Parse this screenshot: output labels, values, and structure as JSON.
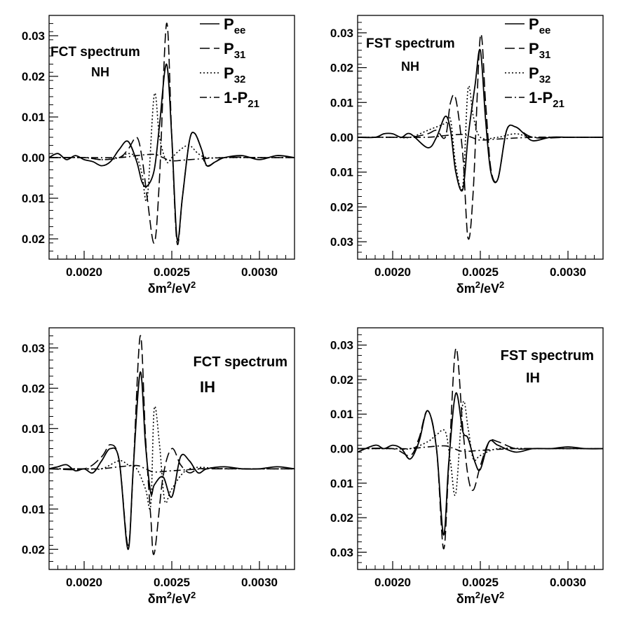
{
  "xlabel": "δm²/eV²",
  "xlabel_parts": {
    "base": "δm",
    "exp": "2",
    "mid": "/eV",
    "exp2": "2"
  },
  "legend": [
    {
      "key": "Pee",
      "main": "P",
      "sub": "ee",
      "dash": ""
    },
    {
      "key": "P31",
      "main": "P",
      "sub": "31",
      "dash": "14 6"
    },
    {
      "key": "P32",
      "main": "P",
      "sub": "32",
      "dash": "2 3"
    },
    {
      "key": "1mP21",
      "main": "1-P",
      "sub": "21",
      "dash": "10 4 2 4"
    }
  ],
  "chart_data": [
    {
      "type": "line",
      "title": "FCT spectrum",
      "subtitle": "NH",
      "xlim": [
        0.0018,
        0.0032
      ],
      "ylim": [
        -0.025,
        0.035
      ],
      "xticks": [
        0.002,
        0.0025,
        0.003
      ],
      "xtick_labels": [
        "0.0020",
        "0.0025",
        "0.0030"
      ],
      "yticks": [
        -0.02,
        -0.01,
        0.0,
        0.01,
        0.02,
        0.03
      ],
      "ytick_labels": [
        "0.02",
        "0.01",
        "0.00",
        "0.01",
        "0.02",
        "0.03"
      ],
      "has_legend": true,
      "series": [
        {
          "name": "Pee",
          "x": [
            0.0018,
            0.00185,
            0.0019,
            0.00195,
            0.002,
            0.00205,
            0.0021,
            0.00215,
            0.0022,
            0.00225,
            0.0023,
            0.00233,
            0.00236,
            0.0024,
            0.00243,
            0.00247,
            0.0025,
            0.00253,
            0.00256,
            0.0026,
            0.00263,
            0.00267,
            0.0027,
            0.00275,
            0.0028,
            0.0029,
            0.003,
            0.0031,
            0.0032
          ],
          "y": [
            0.0,
            0.001,
            -0.0005,
            0.0005,
            -0.0005,
            -0.001,
            -0.002,
            -0.001,
            0.002,
            0.004,
            -0.001,
            -0.006,
            -0.007,
            -0.003,
            0.008,
            0.023,
            0.005,
            -0.02,
            -0.01,
            0.004,
            0.006,
            0.002,
            -0.002,
            -0.001,
            0.0,
            0.0005,
            -0.0005,
            0.0005,
            0.0
          ]
        },
        {
          "name": "P31",
          "x": [
            0.0018,
            0.002,
            0.0021,
            0.0022,
            0.00225,
            0.0023,
            0.00233,
            0.00236,
            0.0024,
            0.00243,
            0.00247,
            0.0025,
            0.00253,
            0.00256,
            0.0026,
            0.00263,
            0.00267,
            0.0027,
            0.0028,
            0.003,
            0.0032
          ],
          "y": [
            0.0,
            0.0,
            -0.0005,
            0.0,
            0.002,
            0.005,
            0.0,
            -0.01,
            -0.021,
            -0.005,
            0.033,
            0.005,
            -0.021,
            -0.01,
            0.004,
            0.006,
            0.002,
            -0.002,
            0.0,
            0.0,
            0.0
          ]
        },
        {
          "name": "P32",
          "x": [
            0.0018,
            0.002,
            0.0021,
            0.0022,
            0.00225,
            0.0023,
            0.00233,
            0.00236,
            0.0024,
            0.00243,
            0.00247,
            0.0025,
            0.00255,
            0.0026,
            0.00265,
            0.0027,
            0.0028,
            0.003,
            0.0032
          ],
          "y": [
            0.0,
            0.0,
            -0.0005,
            0.0,
            0.001,
            0.0,
            -0.004,
            -0.01,
            0.0155,
            0.005,
            -0.001,
            0.0,
            0.002,
            0.003,
            0.001,
            0.0,
            0.0,
            0.0,
            0.0
          ]
        },
        {
          "name": "1-P21",
          "x": [
            0.0018,
            0.002,
            0.0022,
            0.0023,
            0.0024,
            0.00245,
            0.0025,
            0.0026,
            0.0028,
            0.003,
            0.0032
          ],
          "y": [
            0.0,
            0.0,
            0.0,
            0.0005,
            0.0008,
            0.0,
            -0.0008,
            -0.0005,
            0.0,
            0.0,
            0.0
          ]
        }
      ]
    },
    {
      "type": "line",
      "title": "FST spectrum",
      "subtitle": "NH",
      "xlim": [
        0.0018,
        0.0032
      ],
      "ylim": [
        -0.035,
        0.035
      ],
      "xticks": [
        0.002,
        0.0025,
        0.003
      ],
      "xtick_labels": [
        "0.0020",
        "0.0025",
        "0.0030"
      ],
      "yticks": [
        -0.03,
        -0.02,
        -0.01,
        0.0,
        0.01,
        0.02,
        0.03
      ],
      "ytick_labels": [
        "0.03",
        "0.02",
        "0.01",
        "0.00",
        "0.01",
        "0.02",
        "0.03"
      ],
      "has_legend": true,
      "series": [
        {
          "name": "Pee",
          "x": [
            0.0018,
            0.0019,
            0.00195,
            0.002,
            0.00205,
            0.0021,
            0.0022,
            0.00225,
            0.0023,
            0.00233,
            0.00236,
            0.0024,
            0.00243,
            0.00247,
            0.0025,
            0.00253,
            0.00256,
            0.0026,
            0.00265,
            0.0027,
            0.00275,
            0.0028,
            0.0029,
            0.003,
            0.0031,
            0.0032
          ],
          "y": [
            0.0,
            0.0,
            0.001,
            0.001,
            0.0,
            0.001,
            -0.003,
            0.0,
            0.006,
            0.002,
            -0.01,
            -0.015,
            0.0,
            0.015,
            0.025,
            0.005,
            -0.01,
            -0.012,
            0.002,
            0.003,
            0.001,
            -0.001,
            0.0,
            0.0,
            0.0,
            0.0
          ]
        },
        {
          "name": "P31",
          "x": [
            0.0018,
            0.002,
            0.0021,
            0.0022,
            0.00225,
            0.0023,
            0.00233,
            0.00236,
            0.0024,
            0.00243,
            0.00246,
            0.0025,
            0.00253,
            0.00256,
            0.0026,
            0.00265,
            0.0027,
            0.0028,
            0.003,
            0.0032
          ],
          "y": [
            0.0,
            0.0,
            0.0,
            0.001,
            0.002,
            0.0,
            0.01,
            0.011,
            -0.005,
            -0.029,
            -0.015,
            0.029,
            0.01,
            -0.009,
            -0.012,
            0.002,
            0.003,
            0.0,
            0.0,
            0.0
          ]
        },
        {
          "name": "P32",
          "x": [
            0.0018,
            0.002,
            0.0021,
            0.0022,
            0.0023,
            0.00233,
            0.00236,
            0.0024,
            0.00243,
            0.00246,
            0.0025,
            0.0026,
            0.0027,
            0.0028,
            0.003,
            0.0032
          ],
          "y": [
            0.0,
            0.0,
            0.0,
            0.002,
            0.004,
            0.005,
            -0.008,
            -0.014,
            0.014,
            0.006,
            0.0,
            0.0,
            0.001,
            0.0,
            0.0,
            0.0
          ]
        },
        {
          "name": "1-P21",
          "x": [
            0.0018,
            0.002,
            0.0022,
            0.0023,
            0.0024,
            0.00245,
            0.0025,
            0.0026,
            0.0028,
            0.003,
            0.0032
          ],
          "y": [
            0.0,
            0.0,
            0.0,
            0.0005,
            0.0008,
            0.0,
            -0.0008,
            -0.0005,
            0.0,
            0.0,
            0.0
          ]
        }
      ]
    },
    {
      "type": "line",
      "title": "FCT spectrum",
      "subtitle": "IH",
      "xlim": [
        0.0018,
        0.0032
      ],
      "ylim": [
        -0.025,
        0.035
      ],
      "xticks": [
        0.002,
        0.0025,
        0.003
      ],
      "xtick_labels": [
        "0.0020",
        "0.0025",
        "0.0030"
      ],
      "yticks": [
        -0.02,
        -0.01,
        0.0,
        0.01,
        0.02,
        0.03
      ],
      "ytick_labels": [
        "0.02",
        "0.01",
        "0.00",
        "0.01",
        "0.02",
        "0.03"
      ],
      "has_legend": false,
      "series": [
        {
          "name": "Pee",
          "x": [
            0.0018,
            0.00185,
            0.0019,
            0.00195,
            0.002,
            0.00205,
            0.0021,
            0.00215,
            0.0022,
            0.00225,
            0.00228,
            0.00232,
            0.00235,
            0.00238,
            0.0024,
            0.00245,
            0.0025,
            0.00255,
            0.0026,
            0.00265,
            0.0027,
            0.0028,
            0.0029,
            0.003,
            0.0031,
            0.0032
          ],
          "y": [
            0.0,
            0.0005,
            0.001,
            -0.0005,
            0.0,
            -0.001,
            0.002,
            0.005,
            0.002,
            -0.02,
            0.0,
            0.024,
            0.006,
            -0.006,
            -0.004,
            -0.002,
            -0.007,
            0.003,
            0.002,
            -0.001,
            0.0,
            0.0005,
            0.0,
            0.0,
            0.0005,
            0.0
          ]
        },
        {
          "name": "P31",
          "x": [
            0.0018,
            0.002,
            0.0021,
            0.00215,
            0.0022,
            0.00225,
            0.00228,
            0.00232,
            0.00235,
            0.00238,
            0.0024,
            0.00245,
            0.0025,
            0.00255,
            0.0026,
            0.00265,
            0.0027,
            0.0028,
            0.003,
            0.0032
          ],
          "y": [
            0.0,
            0.0,
            0.003,
            0.006,
            0.002,
            -0.019,
            0.0,
            0.033,
            0.008,
            -0.012,
            -0.021,
            -0.002,
            0.005,
            0.001,
            -0.001,
            0.0,
            0.0,
            0.0,
            0.0,
            0.0
          ]
        },
        {
          "name": "P32",
          "x": [
            0.0018,
            0.002,
            0.0021,
            0.0022,
            0.00225,
            0.0023,
            0.00235,
            0.00238,
            0.0024,
            0.00243,
            0.00246,
            0.0025,
            0.0026,
            0.0028,
            0.003,
            0.0032
          ],
          "y": [
            0.0,
            0.0,
            0.0,
            0.002,
            0.001,
            0.0,
            -0.005,
            -0.009,
            0.015,
            0.006,
            -0.008,
            -0.005,
            0.0,
            0.0,
            0.0,
            0.0
          ]
        },
        {
          "name": "1-P21",
          "x": [
            0.0018,
            0.002,
            0.0021,
            0.0022,
            0.0023,
            0.00235,
            0.0024,
            0.0025,
            0.0027,
            0.003,
            0.0032
          ],
          "y": [
            0.0,
            0.0,
            0.0,
            0.0005,
            0.0008,
            0.0,
            -0.0008,
            -0.0005,
            0.0,
            0.0,
            0.0
          ]
        }
      ]
    },
    {
      "type": "line",
      "title": "FST spectrum",
      "subtitle": "IH",
      "xlim": [
        0.0018,
        0.0032
      ],
      "ylim": [
        -0.035,
        0.035
      ],
      "xticks": [
        0.002,
        0.0025,
        0.003
      ],
      "xtick_labels": [
        "0.0020",
        "0.0025",
        "0.0030"
      ],
      "yticks": [
        -0.03,
        -0.02,
        -0.01,
        0.0,
        0.01,
        0.02,
        0.03
      ],
      "ytick_labels": [
        "0.03",
        "0.02",
        "0.01",
        "0.00",
        "0.01",
        "0.02",
        "0.03"
      ],
      "has_legend": false,
      "series": [
        {
          "name": "Pee",
          "x": [
            0.0018,
            0.0019,
            0.00195,
            0.002,
            0.00205,
            0.0021,
            0.00215,
            0.0022,
            0.00225,
            0.00229,
            0.00232,
            0.00236,
            0.0024,
            0.00243,
            0.00247,
            0.0025,
            0.00255,
            0.0026,
            0.0027,
            0.0028,
            0.0029,
            0.003,
            0.0031,
            0.0032
          ],
          "y": [
            -0.001,
            0.001,
            0.0,
            0.001,
            0.0,
            -0.003,
            0.002,
            0.011,
            0.0,
            -0.025,
            -0.004,
            0.016,
            0.005,
            0.003,
            -0.004,
            -0.006,
            0.002,
            0.001,
            -0.001,
            0.0,
            0.0,
            0.0005,
            0.0,
            0.0
          ]
        },
        {
          "name": "P31",
          "x": [
            0.0018,
            0.002,
            0.0021,
            0.00215,
            0.0022,
            0.00225,
            0.00229,
            0.00232,
            0.00236,
            0.0024,
            0.00243,
            0.00246,
            0.0025,
            0.00255,
            0.0026,
            0.0027,
            0.0028,
            0.003,
            0.0032
          ],
          "y": [
            0.0,
            0.0,
            -0.002,
            0.003,
            0.011,
            0.0,
            -0.029,
            -0.005,
            0.029,
            0.006,
            -0.008,
            -0.012,
            -0.005,
            0.002,
            0.002,
            0.0,
            0.0,
            0.0,
            0.0
          ]
        },
        {
          "name": "P32",
          "x": [
            0.0018,
            0.002,
            0.0021,
            0.0022,
            0.00225,
            0.0023,
            0.00233,
            0.00236,
            0.0024,
            0.00243,
            0.00246,
            0.0025,
            0.0026,
            0.0028,
            0.003,
            0.0032
          ],
          "y": [
            0.0,
            0.0,
            0.0,
            0.002,
            0.004,
            0.005,
            -0.004,
            -0.013,
            0.013,
            0.006,
            -0.003,
            -0.002,
            0.0,
            0.0,
            0.0,
            0.0
          ]
        },
        {
          "name": "1-P21",
          "x": [
            0.0018,
            0.002,
            0.0021,
            0.0022,
            0.0023,
            0.00235,
            0.0024,
            0.0025,
            0.0027,
            0.003,
            0.0032
          ],
          "y": [
            0.0,
            0.0,
            0.0,
            0.0005,
            0.0008,
            0.0,
            -0.0008,
            -0.0005,
            0.0,
            0.0,
            0.0
          ]
        }
      ]
    }
  ]
}
